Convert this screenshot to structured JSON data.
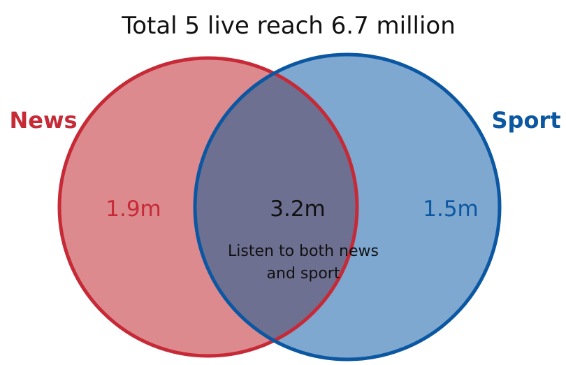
{
  "title": "Total 5 live reach 6.7 million",
  "sets": [
    {
      "key": "news",
      "label": "News",
      "value": "1.9m",
      "fill": "#DD8A8F",
      "stroke": "#C62A36",
      "text_color": "#C62A36"
    },
    {
      "key": "sport",
      "label": "Sport",
      "value": "1.5m",
      "fill": "#7EA8D0",
      "stroke": "#0B57A2",
      "text_color": "#0B57A2"
    }
  ],
  "overlap": {
    "value": "3.2m",
    "description_line1": "Listen to both news",
    "description_line2": "and sport",
    "fill": "#6E7092",
    "stroke": "#5A3A5E",
    "text_color": "#111111"
  }
}
